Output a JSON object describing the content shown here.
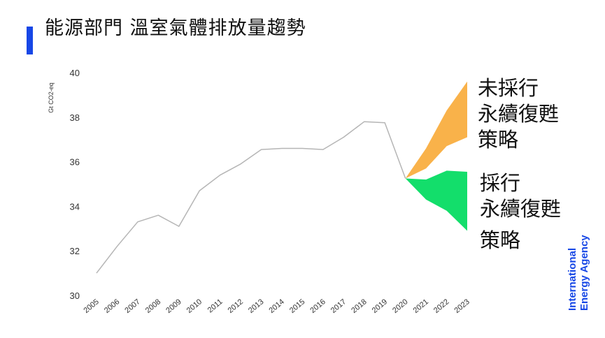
{
  "title": "能源部門 溫室氣體排放量趨勢",
  "colors": {
    "accent": "#1747e6",
    "line": "#b5b5b5",
    "no_policy_band": "#f9b24a",
    "policy_band": "#13de6b",
    "text": "#111111"
  },
  "annotations": {
    "no_policy": [
      "未採行",
      "永續復甦",
      "策略"
    ],
    "policy": [
      "採行",
      "永續復甦",
      "策略"
    ]
  },
  "logo_text": [
    "International",
    "Energy Agency"
  ],
  "chart_data": {
    "type": "line",
    "ylabel": "Gt CO2-eq",
    "ylim": [
      30,
      40
    ],
    "yticks": [
      30,
      32,
      34,
      36,
      38,
      40
    ],
    "xlim": [
      2005,
      2023
    ],
    "xticks": [
      "2005",
      "2006",
      "2007",
      "2008",
      "2009",
      "2010",
      "2011",
      "2012",
      "2013",
      "2014",
      "2015",
      "2016",
      "2017",
      "2018",
      "2019",
      "2020",
      "2021",
      "2022",
      "2023"
    ],
    "grid": false,
    "series": [
      {
        "values": [
          {
            "x": 2005,
            "y": 31.0
          },
          {
            "x": 2006,
            "y": 32.2
          },
          {
            "x": 2007,
            "y": 33.3
          },
          {
            "x": 2008,
            "y": 33.6
          },
          {
            "x": 2009,
            "y": 33.1
          },
          {
            "x": 2010,
            "y": 34.7
          },
          {
            "x": 2011,
            "y": 35.4
          },
          {
            "x": 2012,
            "y": 35.9
          },
          {
            "x": 2013,
            "y": 36.55
          },
          {
            "x": 2014,
            "y": 36.6
          },
          {
            "x": 2015,
            "y": 36.6
          },
          {
            "x": 2016,
            "y": 36.55
          },
          {
            "x": 2017,
            "y": 37.1
          },
          {
            "x": 2018,
            "y": 37.8
          },
          {
            "x": 2019,
            "y": 37.75
          },
          {
            "x": 2020,
            "y": 35.25
          }
        ]
      }
    ],
    "bands": [
      {
        "id": "no_policy",
        "upper": [
          {
            "x": 2020,
            "y": 35.25
          },
          {
            "x": 2021,
            "y": 36.6
          },
          {
            "x": 2022,
            "y": 38.3
          },
          {
            "x": 2023,
            "y": 39.6
          }
        ],
        "lower": [
          {
            "x": 2020,
            "y": 35.25
          },
          {
            "x": 2021,
            "y": 35.7
          },
          {
            "x": 2022,
            "y": 36.7
          },
          {
            "x": 2023,
            "y": 37.1
          }
        ]
      },
      {
        "id": "policy",
        "upper": [
          {
            "x": 2020,
            "y": 35.25
          },
          {
            "x": 2021,
            "y": 35.2
          },
          {
            "x": 2022,
            "y": 35.6
          },
          {
            "x": 2023,
            "y": 35.55
          }
        ],
        "lower": [
          {
            "x": 2020,
            "y": 35.25
          },
          {
            "x": 2021,
            "y": 34.3
          },
          {
            "x": 2022,
            "y": 33.8
          },
          {
            "x": 2023,
            "y": 32.9
          }
        ]
      }
    ]
  }
}
